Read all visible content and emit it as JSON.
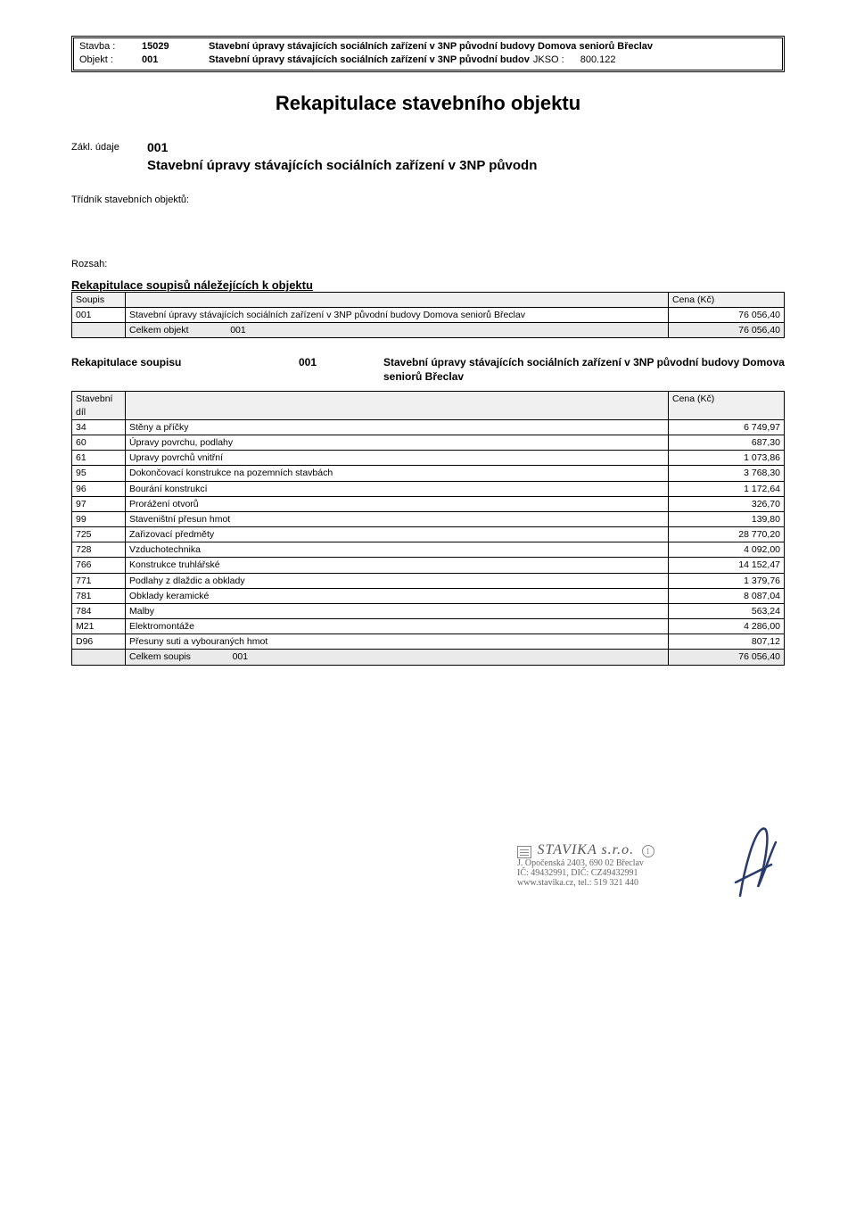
{
  "header": {
    "stavba_label": "Stavba :",
    "stavba_code": "15029",
    "stavba_text": "Stavební úpravy stávajících sociálních zařízení v 3NP původní budovy Domova seniorů Břeclav",
    "objekt_label": "Objekt :",
    "objekt_code": "001",
    "objekt_text": "Stavební úpravy stávajících sociálních zařízení v 3NP původní budov",
    "jkso_label": "JKSO :",
    "jkso_value": "800.122"
  },
  "title": "Rekapitulace stavebního objektu",
  "zakl": {
    "label": "Zákl. údaje",
    "code": "001",
    "title": "Stavební úpravy stávajících sociálních zařízení v 3NP původn"
  },
  "tridnik_label": "Třídník stavebních objektů:",
  "rozsah_label": "Rozsah:",
  "recap1": {
    "title": "Rekapitulace soupisů náležejících k objektu",
    "col_soupis": "Soupis",
    "col_cena": "Cena (Kč)",
    "row_code": "001",
    "row_text": "Stavební úpravy stávajících sociálních zařízení v 3NP původní budovy Domova seniorů Břeclav",
    "row_price": "76 056,40",
    "total_label": "Celkem objekt",
    "total_code": "001",
    "total_price": "76 056,40"
  },
  "soupis_hdr": {
    "label": "Rekapitulace soupisu",
    "code": "001",
    "text": "Stavební úpravy stávajících sociálních zařízení v 3NP původní budovy Domova seniorů Břeclav"
  },
  "recap2": {
    "col_dil": "Stavební díl",
    "col_cena": "Cena (Kč)",
    "rows": [
      {
        "code": "34",
        "text": "Stěny a příčky",
        "price": "6 749,97"
      },
      {
        "code": "60",
        "text": "Úpravy povrchu, podlahy",
        "price": "687,30"
      },
      {
        "code": "61",
        "text": "Upravy povrchů vnitřní",
        "price": "1 073,86"
      },
      {
        "code": "95",
        "text": "Dokončovací konstrukce na pozemních stavbách",
        "price": "3 768,30"
      },
      {
        "code": "96",
        "text": "Bourání konstrukcí",
        "price": "1 172,64"
      },
      {
        "code": "97",
        "text": "Prorážení otvorů",
        "price": "326,70"
      },
      {
        "code": "99",
        "text": "Staveništní přesun hmot",
        "price": "139,80"
      },
      {
        "code": "725",
        "text": "Zařizovací předměty",
        "price": "28 770,20"
      },
      {
        "code": "728",
        "text": "Vzduchotechnika",
        "price": "4 092,00"
      },
      {
        "code": "766",
        "text": "Konstrukce truhlářské",
        "price": "14 152,47"
      },
      {
        "code": "771",
        "text": "Podlahy z dlaždic a obklady",
        "price": "1 379,76"
      },
      {
        "code": "781",
        "text": "Obklady keramické",
        "price": "8 087,04"
      },
      {
        "code": "784",
        "text": "Malby",
        "price": "563,24"
      },
      {
        "code": "M21",
        "text": "Elektromontáže",
        "price": "4 286,00"
      },
      {
        "code": "D96",
        "text": "Přesuny suti a vybouraných hmot",
        "price": "807,12"
      }
    ],
    "total_label": "Celkem soupis",
    "total_code": "001",
    "total_price": "76 056,40"
  },
  "stamp": {
    "company": "STAVIKA s.r.o.",
    "circle": "1",
    "addr": "J. Opočenská 2403, 690 02 Břeclav",
    "ids": "IČ: 49432991, DIČ: CZ49432991",
    "web": "www.stavika.cz, tel.: 519 321 440"
  }
}
